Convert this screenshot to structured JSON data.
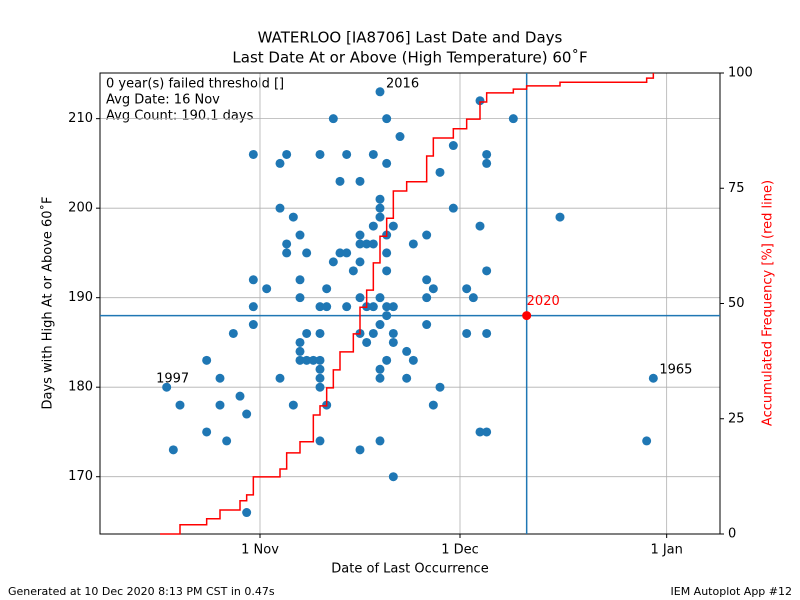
{
  "chart_data": {
    "type": "scatter",
    "title": "WATERLOO [IA8706] Last Date and Days",
    "subtitle": "Last Date At or Above (High Temperature) 60˚F",
    "xlabel": "Date of Last Occurrence",
    "ylabel": "Days with High At or Above 60˚F",
    "y2label": "Accumulated Frequency [%] (red line)",
    "info": [
      "0 year(s) failed threshold []",
      "Avg Date: 16 Nov",
      "Avg Count: 190.1 days"
    ],
    "footer_left": "Generated at 10 Dec 2020 8:13 PM CST in 0.47s",
    "footer_right": "IEM Autoplot App #12",
    "xlim": [
      281,
      374
    ],
    "xticks": [
      {
        "value": 305,
        "label": "1 Nov"
      },
      {
        "value": 335,
        "label": "1 Dec"
      },
      {
        "value": 366,
        "label": "1 Jan"
      }
    ],
    "ylim": [
      163.6,
      215.1
    ],
    "yticks": [
      170,
      180,
      190,
      200,
      210
    ],
    "y2lim": [
      0,
      100
    ],
    "y2ticks": [
      0,
      25,
      50,
      75,
      100
    ],
    "grid": true,
    "crosshair": true,
    "series": [
      {
        "name": "years",
        "color": "#1f77b4",
        "x": [
          291,
          292,
          293,
          297,
          297,
          299,
          299,
          300,
          301,
          302,
          303,
          303,
          304,
          304,
          304,
          304,
          306,
          308,
          308,
          308,
          309,
          309,
          309,
          310,
          310,
          311,
          311,
          311,
          311,
          311,
          311,
          312,
          312,
          312,
          313,
          314,
          314,
          314,
          314,
          314,
          314,
          314,
          314,
          315,
          315,
          315,
          316,
          316,
          317,
          317,
          318,
          318,
          318,
          319,
          320,
          320,
          320,
          320,
          320,
          320,
          320,
          321,
          321,
          321,
          322,
          322,
          322,
          322,
          322,
          323,
          323,
          323,
          323,
          323,
          323,
          323,
          323,
          323,
          324,
          324,
          324,
          324,
          324,
          324,
          324,
          324,
          325,
          325,
          325,
          325,
          325,
          326,
          327,
          327,
          328,
          328,
          330,
          330,
          330,
          330,
          331,
          331,
          332,
          332,
          334,
          334,
          336,
          336,
          337,
          338,
          338,
          338,
          339,
          339,
          339,
          339,
          339,
          343,
          350,
          363,
          364
        ],
        "values": [
          180,
          173,
          178,
          183,
          175,
          181,
          178,
          174,
          186,
          179,
          177,
          166,
          206,
          192,
          189,
          187,
          191,
          205,
          200,
          181,
          206,
          196,
          195,
          199,
          178,
          197,
          192,
          190,
          185,
          184,
          183,
          195,
          186,
          183,
          183,
          206,
          189,
          186,
          183,
          182,
          181,
          180,
          174,
          191,
          189,
          178,
          210,
          194,
          203,
          195,
          206,
          195,
          189,
          193,
          203,
          197,
          196,
          194,
          190,
          186,
          173,
          196,
          189,
          185,
          206,
          198,
          196,
          189,
          186,
          213,
          201,
          200,
          199,
          190,
          187,
          182,
          181,
          174,
          210,
          205,
          197,
          195,
          193,
          189,
          188,
          183,
          198,
          189,
          186,
          185,
          170,
          208,
          184,
          181,
          196,
          183,
          197,
          192,
          190,
          187,
          191,
          178,
          204,
          180,
          207,
          200,
          191,
          186,
          190,
          212,
          198,
          175,
          206,
          205,
          193,
          186,
          175,
          210,
          199,
          174,
          181
        ]
      },
      {
        "name": "2020",
        "color": "#ff0000",
        "x": [
          345
        ],
        "values": [
          188
        ]
      },
      {
        "name": "accumulated",
        "type": "line",
        "axis": "y2",
        "step": true,
        "color": "#ff0000",
        "x": [
          290,
          293,
          297,
          299,
          302,
          303,
          304,
          308,
          309,
          311,
          313,
          314,
          315,
          316,
          317,
          319,
          320,
          321,
          322,
          323,
          324,
          325,
          327,
          330,
          331,
          334,
          336,
          338,
          339,
          343,
          345,
          350,
          363,
          364
        ],
        "values": [
          0,
          2,
          3.3,
          5.2,
          7.2,
          8.5,
          12.4,
          14.1,
          17.6,
          20,
          25.8,
          27.8,
          31.7,
          35.6,
          39.5,
          43.4,
          49.2,
          52.9,
          58.8,
          64.6,
          68.5,
          74.4,
          76.4,
          82,
          85.9,
          87.9,
          90,
          93.7,
          95.7,
          96.5,
          97.2,
          98,
          98.9,
          100
        ]
      }
    ],
    "annotations": [
      {
        "text": "1997",
        "x": 291,
        "y": 180
      },
      {
        "text": "2016",
        "x": 323,
        "y": 213
      },
      {
        "text": "1965",
        "x": 364,
        "y": 181
      },
      {
        "text": "2020",
        "x": 345,
        "y": 188
      }
    ]
  }
}
